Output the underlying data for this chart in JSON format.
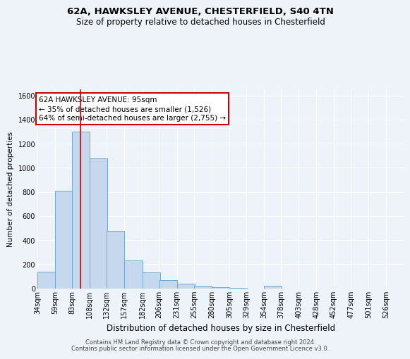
{
  "title1": "62A, HAWKSLEY AVENUE, CHESTERFIELD, S40 4TN",
  "title2": "Size of property relative to detached houses in Chesterfield",
  "xlabel": "Distribution of detached houses by size in Chesterfield",
  "ylabel": "Number of detached properties",
  "bins": [
    34,
    59,
    83,
    108,
    132,
    157,
    182,
    206,
    231,
    255,
    280,
    305,
    329,
    354,
    378,
    403,
    428,
    452,
    477,
    501,
    526
  ],
  "values": [
    140,
    810,
    1300,
    1075,
    475,
    230,
    130,
    65,
    40,
    20,
    10,
    5,
    0,
    20,
    0,
    0,
    0,
    0,
    0,
    0,
    0
  ],
  "bar_color": "#c5d8ee",
  "bar_edge_color": "#6aaad4",
  "red_line_x": 95,
  "ylim": [
    0,
    1650
  ],
  "yticks": [
    0,
    200,
    400,
    600,
    800,
    1000,
    1200,
    1400,
    1600
  ],
  "annotation_title": "62A HAWKSLEY AVENUE: 95sqm",
  "annotation_line1": "← 35% of detached houses are smaller (1,526)",
  "annotation_line2": "64% of semi-detached houses are larger (2,755) →",
  "annotation_box_facecolor": "#ffffff",
  "annotation_box_edgecolor": "#cc0000",
  "footer1": "Contains HM Land Registry data © Crown copyright and database right 2024.",
  "footer2": "Contains public sector information licensed under the Open Government Licence v3.0.",
  "bg_color": "#eef2f9",
  "grid_color": "#ffffff",
  "title1_fontsize": 9.5,
  "title2_fontsize": 8.5,
  "ylabel_fontsize": 7.5,
  "xlabel_fontsize": 8.5,
  "tick_fontsize": 7,
  "footer_fontsize": 6,
  "annotation_fontsize": 7.5
}
